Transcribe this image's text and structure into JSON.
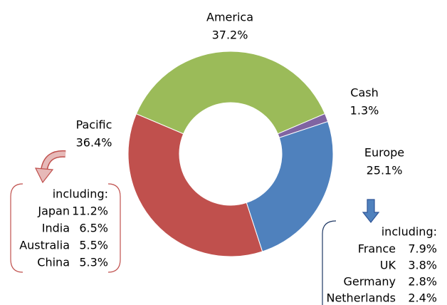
{
  "chart_data": {
    "type": "donut",
    "categories": [
      "America",
      "Cash",
      "Europe",
      "Pacific"
    ],
    "values": [
      37.2,
      1.3,
      25.1,
      36.4
    ],
    "value_labels": [
      "37.2%",
      "1.3%",
      "25.1%",
      "36.4%"
    ],
    "colors": [
      "#9bbb59",
      "#8064a2",
      "#4f81bd",
      "#c0504d"
    ],
    "breakdowns": [
      {
        "heading": "including:",
        "items": [
          {
            "name": "Japan",
            "share": "11.2%"
          },
          {
            "name": "India",
            "share": "6.5%"
          },
          {
            "name": "Australia",
            "share": "5.5%"
          },
          {
            "name": "China",
            "share": "5.3%"
          }
        ]
      },
      {
        "heading": "including:",
        "items": [
          {
            "name": "France",
            "share": "7.9%"
          },
          {
            "name": "UK",
            "share": "3.8%"
          },
          {
            "name": "Germany",
            "share": "2.8%"
          },
          {
            "name": "Netherlands",
            "share": "2.4%"
          }
        ]
      }
    ]
  }
}
